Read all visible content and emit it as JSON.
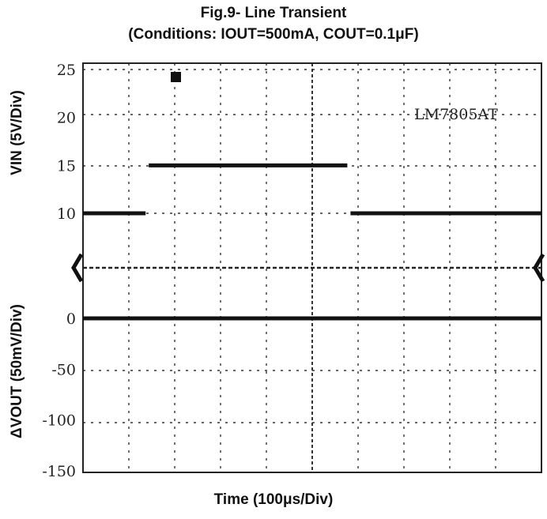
{
  "chart_data": {
    "type": "line",
    "title": "Fig.9- Line Transient",
    "subtitle": "(Conditions: IOUT=500mA, COUT=0.1μF)",
    "xlabel": "Time (100μs/Div)",
    "annotation": "LM7805AT",
    "grid": true,
    "x_divisions": 10,
    "panels": [
      {
        "name": "top",
        "ylabel": "VIN (5V/Div)",
        "y_ticks": [
          "25",
          "20",
          "15",
          "10"
        ],
        "y_tick_values": [
          25,
          20,
          15,
          10
        ],
        "ylim": [
          5,
          25
        ],
        "series": [
          {
            "x": [
              0,
              1.4,
              1.4,
              5.8,
              5.8,
              10
            ],
            "y": [
              10,
              10,
              15,
              15,
              10,
              10
            ]
          }
        ]
      },
      {
        "name": "bottom",
        "ylabel": "ΔVOUT (50mV/Div)",
        "y_ticks": [
          "0",
          "-50",
          "-100",
          "-150"
        ],
        "y_tick_values": [
          0,
          -50,
          -100,
          -150
        ],
        "ylim": [
          -150,
          25
        ],
        "series": [
          {
            "x": [
              0,
              10
            ],
            "y": [
              0,
              0
            ]
          }
        ]
      }
    ]
  }
}
